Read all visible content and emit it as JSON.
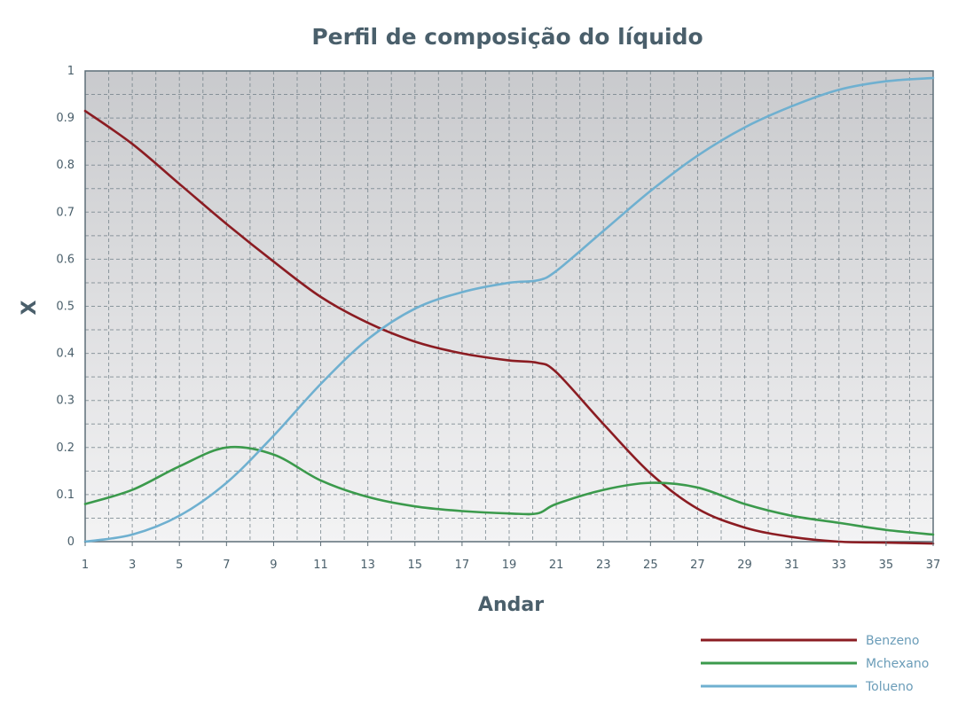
{
  "chart_data": {
    "type": "line",
    "title": "Perfil de composição do líquido",
    "xlabel": "Andar",
    "ylabel": "X",
    "xlim": [
      1,
      37
    ],
    "ylim": [
      0,
      1
    ],
    "x_ticks": [
      1,
      3,
      5,
      7,
      9,
      11,
      13,
      15,
      17,
      19,
      21,
      23,
      25,
      27,
      29,
      31,
      33,
      35,
      37
    ],
    "y_ticks": [
      0,
      0.1,
      0.2,
      0.3,
      0.4,
      0.5,
      0.6,
      0.7,
      0.8,
      0.9,
      1
    ],
    "y_tick_labels": [
      "0",
      "0.1",
      "0.2",
      "0.3",
      "0.4",
      "0.5",
      "0.6",
      "0.7",
      "0.8",
      "0.9",
      "1"
    ],
    "grid": true,
    "legend_position": "bottom-right",
    "series": [
      {
        "name": "Benzeno",
        "color": "#8b1c22",
        "x": [
          1,
          3,
          5,
          7,
          9,
          11,
          13,
          15,
          17,
          19,
          20.2,
          21,
          23,
          25,
          27,
          29,
          31,
          33,
          35,
          37
        ],
        "y": [
          0.915,
          0.845,
          0.76,
          0.675,
          0.595,
          0.52,
          0.465,
          0.425,
          0.4,
          0.385,
          0.38,
          0.36,
          0.25,
          0.145,
          0.07,
          0.03,
          0.01,
          0.0,
          -0.002,
          -0.004
        ]
      },
      {
        "name": "Mchexano",
        "color": "#3b9a4c",
        "x": [
          1,
          3,
          5,
          7,
          9,
          11,
          13,
          15,
          17,
          19,
          20.2,
          21,
          23,
          25,
          27,
          29,
          31,
          33,
          35,
          37
        ],
        "y": [
          0.08,
          0.11,
          0.16,
          0.2,
          0.185,
          0.13,
          0.095,
          0.075,
          0.065,
          0.06,
          0.06,
          0.08,
          0.11,
          0.125,
          0.115,
          0.08,
          0.055,
          0.04,
          0.025,
          0.015
        ]
      },
      {
        "name": "Tolueno",
        "color": "#6fb0d0",
        "x": [
          1,
          3,
          5,
          7,
          9,
          11,
          13,
          15,
          17,
          19,
          20.2,
          21,
          23,
          25,
          27,
          29,
          31,
          33,
          35,
          37
        ],
        "y": [
          0.0,
          0.015,
          0.055,
          0.125,
          0.225,
          0.335,
          0.43,
          0.495,
          0.53,
          0.55,
          0.555,
          0.575,
          0.66,
          0.745,
          0.82,
          0.88,
          0.925,
          0.96,
          0.978,
          0.985
        ]
      }
    ]
  },
  "colors": {
    "text": "#4a5f6b",
    "legend_text": "#6a9cb8",
    "plot_border": "#5e6f78",
    "grid": "#6f7e86",
    "plot_bg_top": "#c9cacd",
    "plot_bg_bottom": "#f3f3f4"
  }
}
